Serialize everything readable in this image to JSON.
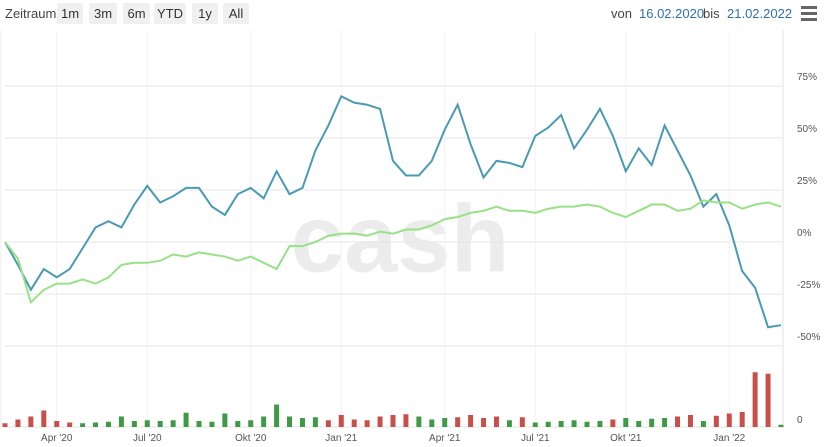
{
  "range_selector": {
    "label": "Zeitraum",
    "buttons": [
      "1m",
      "3m",
      "6m",
      "YTD",
      "1y",
      "All"
    ],
    "from_label": "von",
    "from": "16.02.2020",
    "to_label": "bis",
    "to": "21.02.2022"
  },
  "watermark": "cash",
  "chart_data": {
    "type": "line",
    "categories": [
      null,
      null,
      null,
      null,
      "Apr '20",
      null,
      null,
      null,
      null,
      null,
      null,
      "Jul '20",
      null,
      null,
      null,
      null,
      null,
      null,
      null,
      "Okt '20",
      null,
      null,
      null,
      null,
      null,
      null,
      "Jan '21",
      null,
      null,
      null,
      null,
      null,
      null,
      null,
      "Apr '21",
      null,
      null,
      null,
      null,
      null,
      null,
      "Jul '21",
      null,
      null,
      null,
      null,
      null,
      null,
      "Okt '21",
      null,
      null,
      null,
      null,
      null,
      null,
      null,
      "Jan '22",
      null,
      null,
      null,
      null
    ],
    "ylim": [
      -50,
      100
    ],
    "yticks": [
      {
        "value": 75,
        "label": "75%"
      },
      {
        "value": 50,
        "label": "50%"
      },
      {
        "value": 25,
        "label": "25%"
      },
      {
        "value": 0,
        "label": "0%"
      },
      {
        "value": -25,
        "label": "-25%"
      },
      {
        "value": -50,
        "label": "-50%"
      }
    ],
    "y2lim": [
      0,
      100
    ],
    "y2ticks": [
      0
    ],
    "grid": true,
    "series": [
      {
        "color": "#4a9ab3",
        "values": [
          0,
          -11,
          -23,
          -13,
          -17,
          -13,
          -3,
          7,
          10,
          7,
          18,
          27,
          19,
          22,
          26,
          26,
          17,
          13,
          23,
          26,
          21,
          34,
          23,
          26,
          44,
          56,
          70,
          67,
          66,
          64,
          39,
          32,
          32,
          39,
          54,
          66,
          47,
          31,
          39,
          38,
          36,
          51,
          55,
          61,
          45,
          54,
          64,
          51,
          34,
          45,
          37,
          56,
          44,
          32,
          17,
          23,
          8,
          -14,
          -22,
          -41,
          -40
        ]
      },
      {
        "color": "#98e187",
        "values": [
          0,
          -8,
          -29,
          -23,
          -20,
          -20,
          -18,
          -20,
          -17,
          -11,
          -10,
          -10,
          -9,
          -6,
          -7,
          -5,
          -6,
          -7,
          -9,
          -7,
          -10,
          -13,
          -2,
          -2,
          0,
          3,
          4,
          4,
          3,
          5,
          4,
          6,
          6,
          8,
          11,
          12,
          14,
          15,
          17,
          15,
          15,
          14,
          16,
          17,
          17,
          18,
          17,
          14,
          12,
          15,
          18,
          18,
          15,
          16,
          20,
          19,
          19,
          16,
          18,
          19,
          17
        ]
      },
      {
        "type": "bar",
        "axis": "y2",
        "values": [
          5,
          10,
          14,
          22,
          8,
          6,
          5,
          6,
          7,
          14,
          8,
          9,
          8,
          9,
          19,
          8,
          7,
          18,
          8,
          9,
          14,
          30,
          14,
          12,
          13,
          9,
          16,
          10,
          9,
          14,
          16,
          17,
          14,
          10,
          12,
          13,
          16,
          12,
          14,
          9,
          13,
          6,
          7,
          8,
          9,
          7,
          8,
          10,
          12,
          8,
          11,
          12,
          14,
          16,
          8,
          15,
          18,
          20,
          73,
          71,
          3
        ],
        "colors": [
          "#c9504a",
          "#c9504a",
          "#c9504a",
          "#c9504a",
          "#c9504a",
          "#c9504a",
          "#3f9a46",
          "#3f9a46",
          "#3f9a46",
          "#3f9a46",
          "#3f9a46",
          "#3f9a46",
          "#3f9a46",
          "#3f9a46",
          "#3f9a46",
          "#3f9a46",
          "#3f9a46",
          "#3f9a46",
          "#3f9a46",
          "#3f9a46",
          "#3f9a46",
          "#3f9a46",
          "#3f9a46",
          "#3f9a46",
          "#3f9a46",
          "#c9504a",
          "#c9504a",
          "#c9504a",
          "#c9504a",
          "#c9504a",
          "#c9504a",
          "#c9504a",
          "#3f9a46",
          "#3f9a46",
          "#3f9a46",
          "#c9504a",
          "#c9504a",
          "#c9504a",
          "#c9504a",
          "#3f9a46",
          "#c9504a",
          "#3f9a46",
          "#3f9a46",
          "#3f9a46",
          "#3f9a46",
          "#3f9a46",
          "#3f9a46",
          "#c9504a",
          "#3f9a46",
          "#3f9a46",
          "#3f9a46",
          "#3f9a46",
          "#c9504a",
          "#c9504a",
          "#3f9a46",
          "#c9504a",
          "#c9504a",
          "#c9504a",
          "#c9504a",
          "#c9504a",
          "#3f9a46"
        ]
      }
    ]
  }
}
